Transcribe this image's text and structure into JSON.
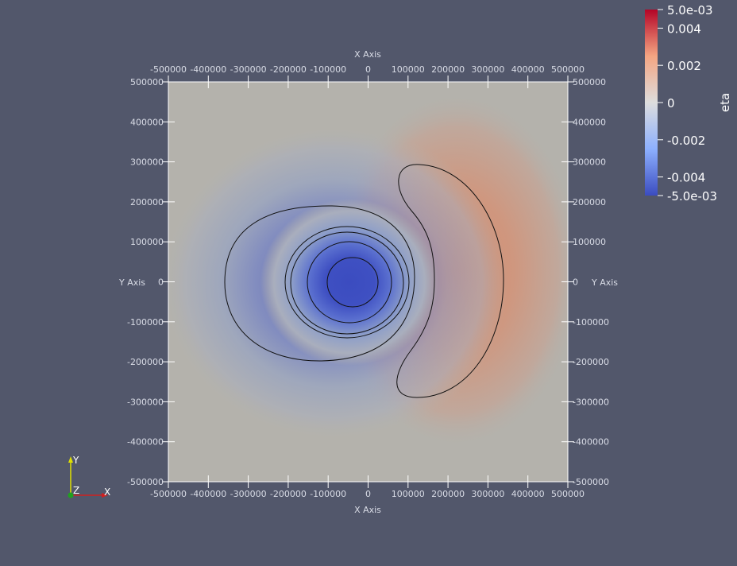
{
  "viewport": {
    "background": "#52576b",
    "plot_background": "#b4b2ac"
  },
  "axes": {
    "x_title_top": "X Axis",
    "x_title_bottom": "X Axis",
    "y_title_left": "Y Axis",
    "y_title_right": "Y Axis",
    "x_ticks": [
      "-500000",
      "-400000",
      "-300000",
      "-200000",
      "-100000",
      "0",
      "100000",
      "200000",
      "300000",
      "400000",
      "500000"
    ],
    "y_ticks": [
      "500000",
      "400000",
      "300000",
      "200000",
      "100000",
      "0",
      "-100000",
      "-200000",
      "-300000",
      "-400000",
      "-500000"
    ],
    "range": [
      -500000,
      500000
    ]
  },
  "field": {
    "name": "eta",
    "colormap": "Cool to Warm",
    "negative_center": [
      -40000,
      0
    ],
    "positive_center": [
      230000,
      10000
    ]
  },
  "colorbar": {
    "title": "eta",
    "max_label": "5.0e-03",
    "min_label": "-5.0e-03",
    "labels": [
      "0.004",
      "0.002",
      "0",
      "-0.002",
      "-0.004"
    ],
    "low_color": "#3b4cc0",
    "mid_color": "#dddddd",
    "high_color": "#b40426"
  },
  "orientation": {
    "x_label": "X",
    "y_label": "Y",
    "z_label": "Z",
    "x_color": "#d02020",
    "y_color": "#e0e000",
    "z_color": "#20a020"
  }
}
